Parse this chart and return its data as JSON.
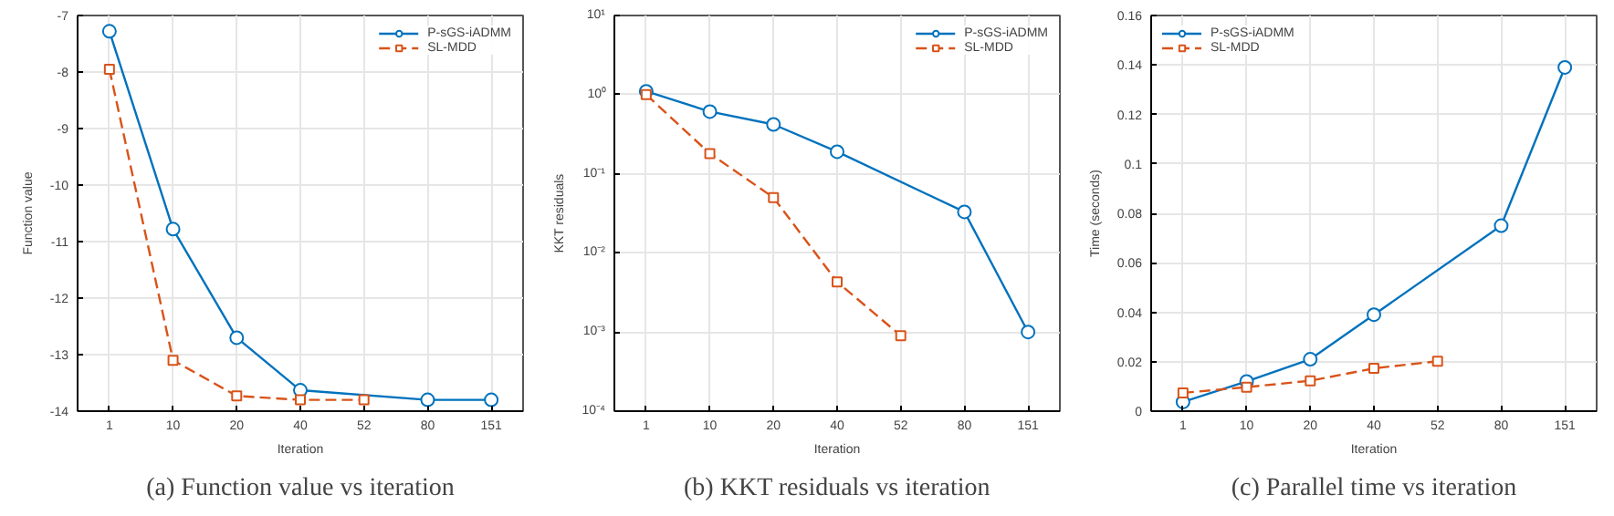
{
  "chart_data": [
    {
      "type": "line",
      "xlabel": "Iteration",
      "ylabel": "Function value",
      "annotations": [
        "(a) Function value vs iteration"
      ],
      "categories": [
        "1",
        "10",
        "20",
        "40",
        "52",
        "80",
        "151"
      ],
      "ylim": [
        -14,
        -7
      ],
      "yticks": [
        -14,
        -13,
        -12,
        -11,
        -10,
        -9,
        -8,
        -7
      ],
      "grid": true,
      "legend": "top right",
      "series": [
        {
          "name": "P-sGS-iADMM",
          "color": "#0072bd",
          "marker": "circle",
          "line_style": "solid",
          "values": [
            -7.28,
            -10.78,
            -12.7,
            -13.63,
            null,
            -13.8,
            -13.8
          ]
        },
        {
          "name": "SL-MDD",
          "color": "#d95319",
          "marker": "square",
          "line_style": "dashed",
          "values": [
            -7.95,
            -13.1,
            -13.73,
            -13.8,
            -13.8,
            null,
            null
          ]
        }
      ]
    },
    {
      "type": "line",
      "xlabel": "Iteration",
      "ylabel": "KKT residuals",
      "annotations": [
        "(b) KKT residuals vs iteration"
      ],
      "log": "y",
      "categories": [
        "1",
        "10",
        "20",
        "40",
        "52",
        "80",
        "151"
      ],
      "ylim": [
        0.0001,
        10
      ],
      "yticks": [
        {
          "value": 0.0001,
          "label": "10⁻⁴"
        },
        {
          "value": 0.001,
          "label": "10⁻³"
        },
        {
          "value": 0.01,
          "label": "10⁻²"
        },
        {
          "value": 0.1,
          "label": "10⁻¹"
        },
        {
          "value": 1,
          "label": "10⁰"
        },
        {
          "value": 10,
          "label": "10¹"
        }
      ],
      "grid": true,
      "legend": "top right",
      "series": [
        {
          "name": "P-sGS-iADMM",
          "color": "#0072bd",
          "marker": "circle",
          "line_style": "solid",
          "values": [
            1.1,
            0.61,
            0.42,
            0.19,
            null,
            0.033,
            0.001
          ]
        },
        {
          "name": "SL-MDD",
          "color": "#d95319",
          "marker": "square",
          "line_style": "dashed",
          "values": [
            1.0,
            0.18,
            0.05,
            0.0043,
            0.0009,
            null,
            null
          ]
        }
      ]
    },
    {
      "type": "line",
      "xlabel": "Iteration",
      "ylabel": "Time (seconds)",
      "annotations": [
        "(c) Parallel time vs iteration"
      ],
      "categories": [
        "1",
        "10",
        "20",
        "40",
        "52",
        "80",
        "151"
      ],
      "ylim": [
        0,
        0.16
      ],
      "yticks": [
        0,
        0.02,
        0.04,
        0.06,
        0.08,
        0.1,
        0.12,
        0.14,
        0.16
      ],
      "grid": true,
      "legend": "top left",
      "series": [
        {
          "name": "P-sGS-iADMM",
          "color": "#0072bd",
          "marker": "circle",
          "line_style": "solid",
          "values": [
            0.0037,
            0.012,
            0.021,
            0.039,
            null,
            0.075,
            0.139
          ]
        },
        {
          "name": "SL-MDD",
          "color": "#d95319",
          "marker": "square",
          "line_style": "dashed",
          "values": [
            0.0074,
            0.0097,
            0.0123,
            0.0173,
            0.0202,
            null,
            null
          ]
        }
      ]
    }
  ]
}
